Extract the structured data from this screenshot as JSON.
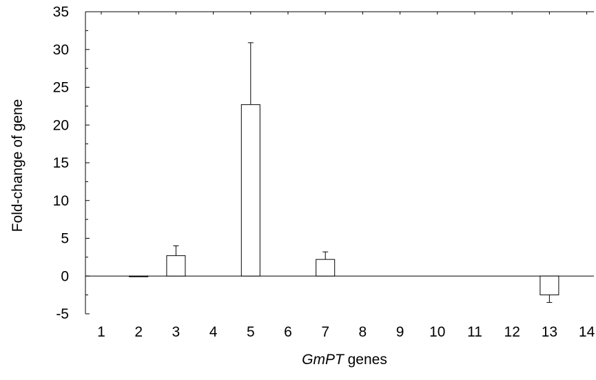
{
  "chart_data": {
    "type": "bar",
    "categories": [
      "1",
      "2",
      "3",
      "4",
      "5",
      "6",
      "7",
      "8",
      "9",
      "10",
      "11",
      "12",
      "13",
      "14"
    ],
    "values": [
      0,
      -0.1,
      2.7,
      0,
      22.7,
      0,
      2.2,
      0,
      0,
      0,
      0,
      0,
      -2.5,
      0
    ],
    "error_bars": [
      0,
      0,
      1.3,
      0,
      8.2,
      0,
      1.0,
      0,
      0,
      0,
      0,
      0,
      1.0,
      0
    ],
    "error_direction": [
      "up",
      "up",
      "up",
      "up",
      "up",
      "up",
      "up",
      "up",
      "up",
      "up",
      "up",
      "up",
      "down",
      "up"
    ],
    "title": "",
    "xlabel_italic": "GmPT",
    "xlabel_rest": " genes",
    "ylabel": "Fold-change of gene",
    "ylim": [
      -5,
      35
    ],
    "yticks": [
      "35",
      "30",
      "25",
      "20",
      "15",
      "10",
      "5",
      "0",
      "-5"
    ],
    "grid": false,
    "legend": "none",
    "bar_fill": "#ffffff",
    "bar_stroke": "#000000"
  }
}
